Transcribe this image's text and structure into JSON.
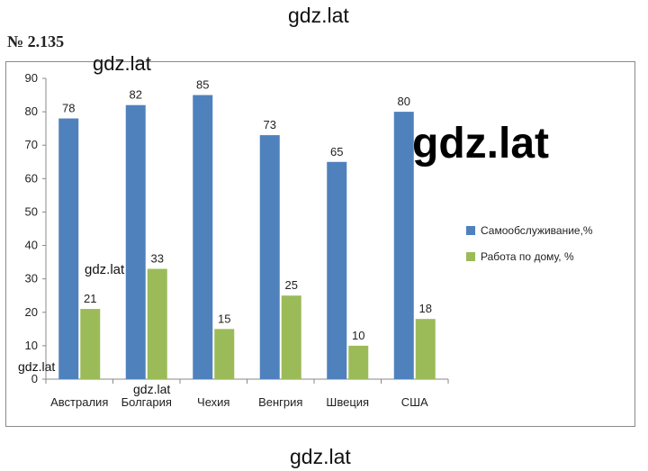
{
  "problem_number": "№ 2.135",
  "watermarks": [
    "gdz.lat",
    "gdz.lat",
    "gdz.lat",
    "gdz.lat",
    "gdz.lat",
    "gdz.lat",
    "gdz.lat"
  ],
  "colors": {
    "series_0": "#4f81bd",
    "series_1": "#9bbb59",
    "frame": "#8a8a8a",
    "axis": "#888888"
  },
  "chart_data": {
    "type": "bar",
    "categories": [
      "Австралия",
      "Болгария",
      "Чехия",
      "Венгрия",
      "Швеция",
      "США"
    ],
    "series": [
      {
        "name": "Самообслуживание,%",
        "values": [
          78,
          82,
          85,
          73,
          65,
          80
        ]
      },
      {
        "name": "Работа по дому, %",
        "values": [
          21,
          33,
          15,
          25,
          10,
          18
        ]
      }
    ],
    "ylim": [
      0,
      90
    ],
    "yticks": [
      0,
      10,
      20,
      30,
      40,
      50,
      60,
      70,
      80,
      90
    ],
    "grid": false,
    "legend": "right",
    "data_labels": true
  }
}
